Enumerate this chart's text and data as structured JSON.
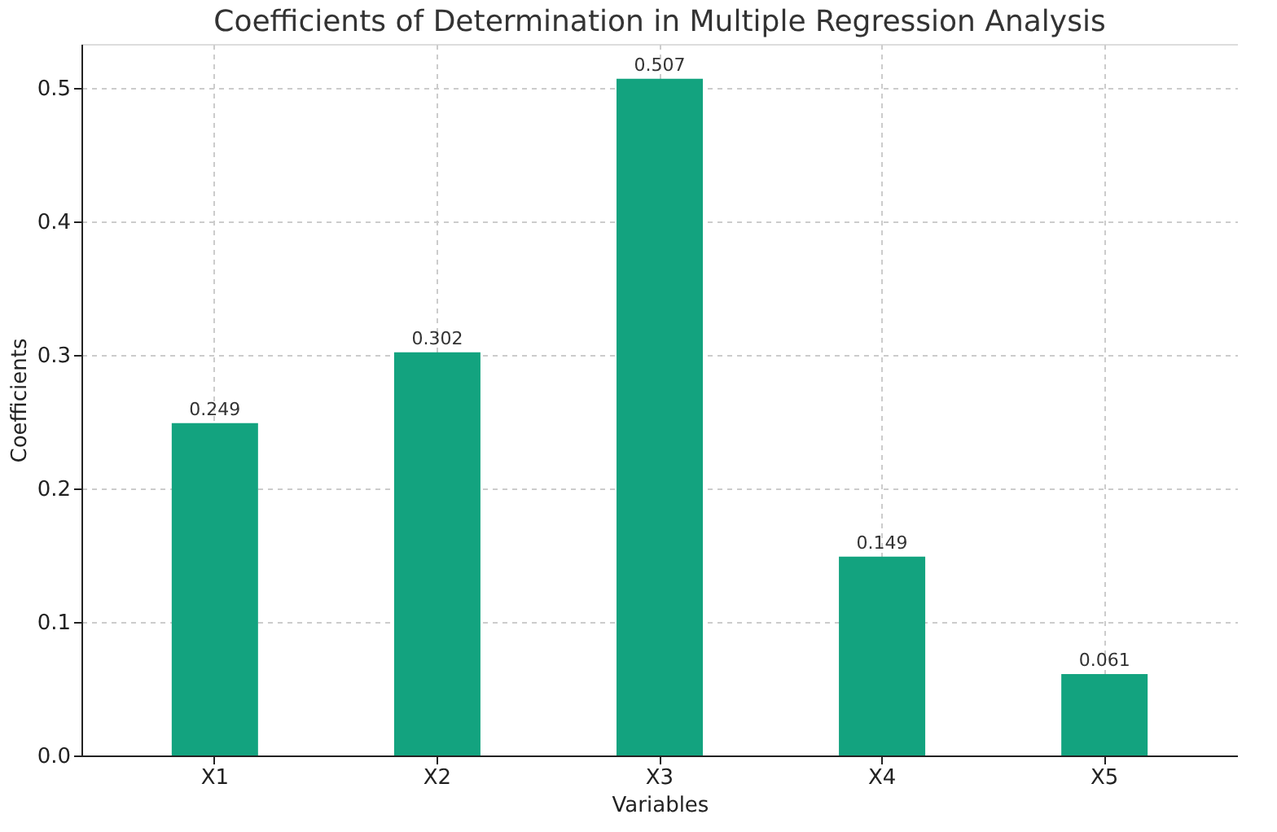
{
  "chart_data": {
    "type": "bar",
    "title": "Coefficients of Determination in Multiple Regression Analysis",
    "xlabel": "Variables",
    "ylabel": "Coefficients",
    "categories": [
      "X1",
      "X2",
      "X3",
      "X4",
      "X5"
    ],
    "values": [
      0.249,
      0.302,
      0.507,
      0.149,
      0.061
    ],
    "color": "#13a37f",
    "ylim": [
      0,
      0.533
    ],
    "yticks": [
      {
        "value": 0,
        "label": "0.0"
      },
      0.1,
      0.2,
      0.3,
      0.4,
      0.5
    ],
    "grid": true,
    "data_labels": true
  }
}
